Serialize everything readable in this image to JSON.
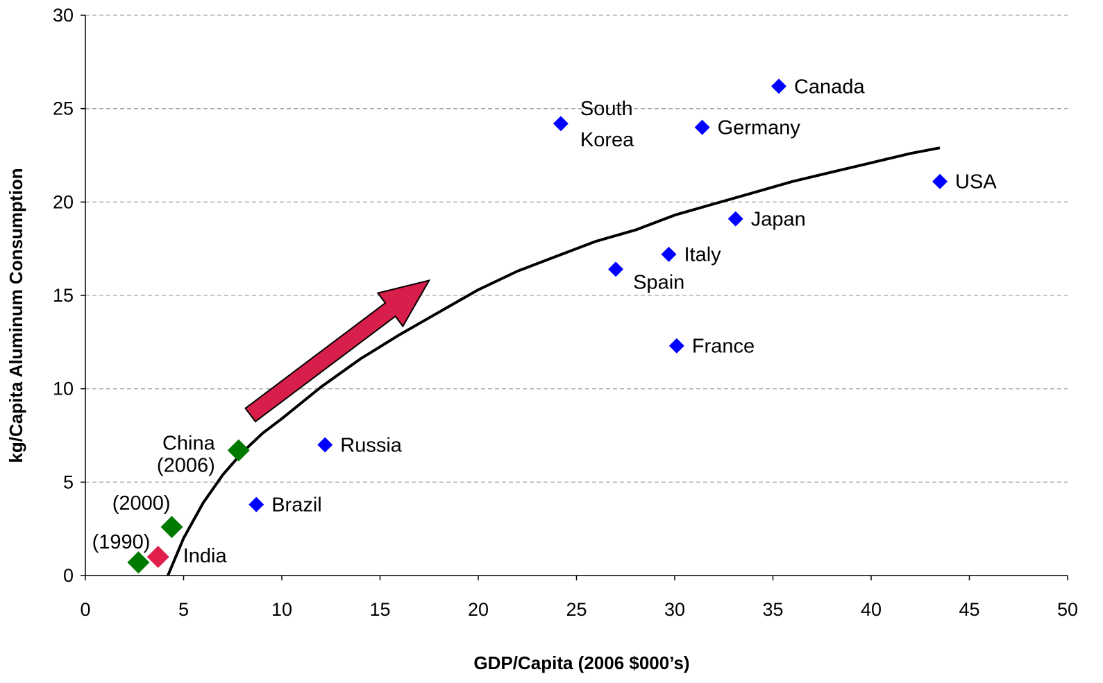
{
  "chart_data": {
    "type": "scatter",
    "xlabel": "GDP/Capita (2006 $000’s)",
    "ylabel": "kg/Capita Aluminum Consumption",
    "xlim": [
      0,
      50
    ],
    "ylim": [
      0,
      30
    ],
    "x_ticks": [
      "0",
      "5",
      "10",
      "15",
      "20",
      "25",
      "30",
      "35",
      "40",
      "45",
      "50"
    ],
    "y_ticks": [
      "0",
      "5",
      "10",
      "15",
      "20",
      "25",
      "30"
    ],
    "grid": "horizontal dashed",
    "colors": {
      "developed": "#0000ff",
      "china": "#007a00",
      "india": "#e0204a",
      "arrow": "#d81e4a",
      "curve": "#000000"
    },
    "series": [
      {
        "color": "#0000ff",
        "points": [
          {
            "label": "Canada",
            "x": 35.3,
            "y": 26.2
          },
          {
            "label": "South Korea",
            "x": 24.2,
            "y": 24.2
          },
          {
            "label": "Germany",
            "x": 31.4,
            "y": 24.0
          },
          {
            "label": "USA",
            "x": 43.5,
            "y": 21.1
          },
          {
            "label": "Japan",
            "x": 33.1,
            "y": 19.1
          },
          {
            "label": "Italy",
            "x": 29.7,
            "y": 17.2
          },
          {
            "label": "Spain",
            "x": 27.0,
            "y": 16.4
          },
          {
            "label": "France",
            "x": 30.1,
            "y": 12.3
          },
          {
            "label": "Russia",
            "x": 12.2,
            "y": 7.0
          },
          {
            "label": "Brazil",
            "x": 8.7,
            "y": 3.8
          }
        ]
      },
      {
        "color": "#007a00",
        "points": [
          {
            "label": "China (2006)",
            "x": 7.8,
            "y": 6.7
          },
          {
            "label": "(2000)",
            "x": 4.4,
            "y": 2.6
          },
          {
            "label": "(1990)",
            "x": 2.7,
            "y": 0.7
          }
        ]
      },
      {
        "color": "#e0204a",
        "points": [
          {
            "label": "India",
            "x": 3.7,
            "y": 1.0
          }
        ]
      }
    ],
    "trend_curve": {
      "x": [
        4.2,
        5,
        6,
        7,
        8,
        9,
        10,
        12,
        14,
        16,
        18,
        20,
        22,
        24,
        26,
        28,
        30,
        32,
        34,
        36,
        38,
        40,
        42,
        43.5
      ],
      "y": [
        0,
        2.0,
        3.9,
        5.4,
        6.6,
        7.6,
        8.4,
        10.1,
        11.6,
        12.9,
        14.1,
        15.3,
        16.3,
        17.1,
        17.9,
        18.5,
        19.3,
        19.9,
        20.5,
        21.1,
        21.6,
        22.1,
        22.6,
        22.9
      ]
    },
    "arrow": {
      "from": [
        8.4,
        8.6
      ],
      "to": [
        17.5,
        15.8
      ]
    }
  }
}
